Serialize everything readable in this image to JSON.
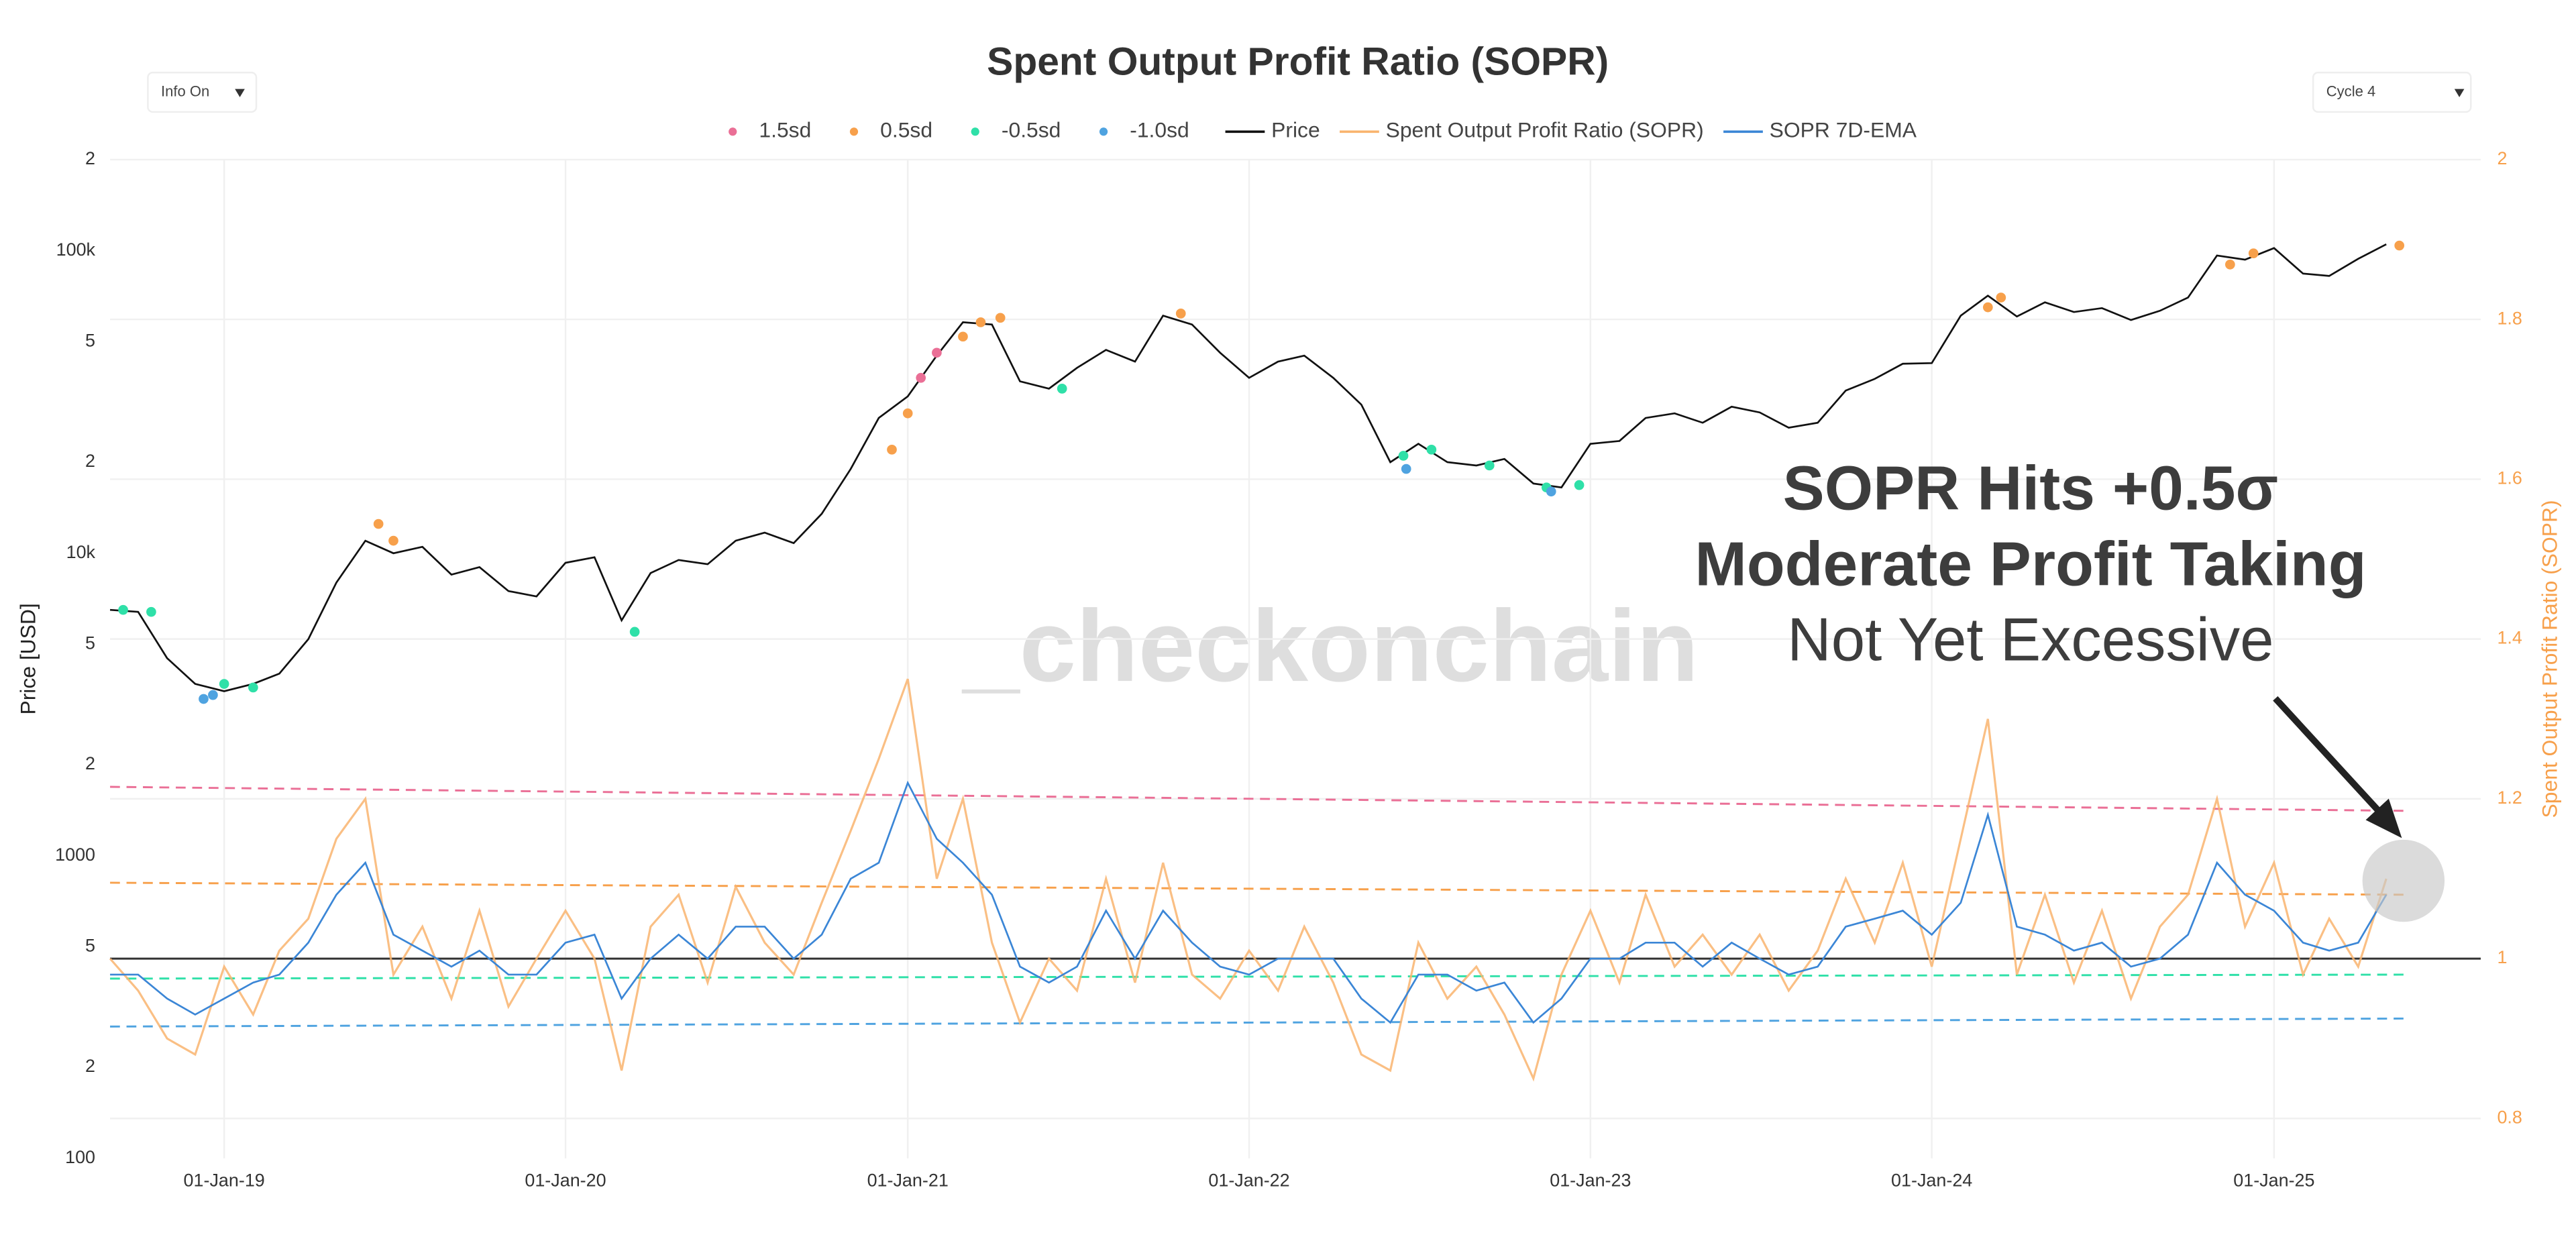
{
  "controls": [
    "Info On",
    "Cycle 4"
  ],
  "chart_data": {
    "type": "line",
    "title": "Spent Output Profit Ratio (SOPR)",
    "ylabel": "Price [USD]",
    "y2label": "Spent Output Profit Ratio (SOPR)",
    "watermark": "_checkonchain",
    "annotations": [
      "SOPR Hits +0.5σ",
      "Moderate Profit Taking",
      "Not Yet Excessive"
    ],
    "log_y": true,
    "grid": true,
    "xlim": [
      "2018-09-01",
      "2025-08-10"
    ],
    "xticks": [
      {
        "value": "2019-01-01",
        "label": "01-Jan-19"
      },
      {
        "value": "2020-01-01",
        "label": "01-Jan-20"
      },
      {
        "value": "2021-01-01",
        "label": "01-Jan-21"
      },
      {
        "value": "2022-01-01",
        "label": "01-Jan-22"
      },
      {
        "value": "2023-01-01",
        "label": "01-Jan-23"
      },
      {
        "value": "2024-01-01",
        "label": "01-Jan-24"
      },
      {
        "value": "2025-01-01",
        "label": "01-Jan-25"
      }
    ],
    "ylim": [
      100,
      200000
    ],
    "yticks": [
      100,
      {
        "value": 200,
        "label": "2"
      },
      {
        "value": 500,
        "label": "5"
      },
      1000,
      {
        "value": 2000,
        "label": "2"
      },
      {
        "value": 5000,
        "label": "5"
      },
      {
        "value": 10000,
        "label": "10k"
      },
      {
        "value": 20000,
        "label": "2"
      },
      {
        "value": 50000,
        "label": "5"
      },
      {
        "value": 100000,
        "label": "100k"
      },
      {
        "value": 200000,
        "label": "2"
      }
    ],
    "y2lim": [
      0.75,
      2.0
    ],
    "y2ticks": [
      0.8,
      1,
      1.2,
      1.4,
      1.6,
      1.8,
      2
    ],
    "hline": 1,
    "x": [
      "2018-09-01",
      "2018-10-01",
      "2018-11-01",
      "2018-12-01",
      "2019-01-01",
      "2019-02-01",
      "2019-03-01",
      "2019-04-01",
      "2019-05-01",
      "2019-06-01",
      "2019-07-01",
      "2019-08-01",
      "2019-09-01",
      "2019-10-01",
      "2019-11-01",
      "2019-12-01",
      "2020-01-01",
      "2020-02-01",
      "2020-03-01",
      "2020-04-01",
      "2020-05-01",
      "2020-06-01",
      "2020-07-01",
      "2020-08-01",
      "2020-09-01",
      "2020-10-01",
      "2020-11-01",
      "2020-12-01",
      "2021-01-01",
      "2021-02-01",
      "2021-03-01",
      "2021-04-01",
      "2021-05-01",
      "2021-06-01",
      "2021-07-01",
      "2021-08-01",
      "2021-09-01",
      "2021-10-01",
      "2021-11-01",
      "2021-12-01",
      "2022-01-01",
      "2022-02-01",
      "2022-03-01",
      "2022-04-01",
      "2022-05-01",
      "2022-06-01",
      "2022-07-01",
      "2022-08-01",
      "2022-09-01",
      "2022-10-01",
      "2022-11-01",
      "2022-12-01",
      "2023-01-01",
      "2023-02-01",
      "2023-03-01",
      "2023-04-01",
      "2023-05-01",
      "2023-06-01",
      "2023-07-01",
      "2023-08-01",
      "2023-09-01",
      "2023-10-01",
      "2023-11-01",
      "2023-12-01",
      "2024-01-01",
      "2024-02-01",
      "2024-03-01",
      "2024-04-01",
      "2024-05-01",
      "2024-06-01",
      "2024-07-01",
      "2024-08-01",
      "2024-09-01",
      "2024-10-01",
      "2024-11-01",
      "2024-12-01",
      "2025-01-01",
      "2025-02-01",
      "2025-03-01",
      "2025-04-01",
      "2025-05-01"
    ],
    "series": [
      {
        "name": "Spent Output Profit Ratio (SOPR)",
        "color": "#f9b46e",
        "axis": "y2",
        "values": [
          1.0,
          0.96,
          0.9,
          0.88,
          0.99,
          0.93,
          1.01,
          1.05,
          1.15,
          1.2,
          0.98,
          1.04,
          0.95,
          1.06,
          0.94,
          1.0,
          1.06,
          1.0,
          0.86,
          1.04,
          1.08,
          0.97,
          1.09,
          1.02,
          0.98,
          1.07,
          1.16,
          1.25,
          1.35,
          1.1,
          1.2,
          1.02,
          0.92,
          1.0,
          0.96,
          1.1,
          0.97,
          1.12,
          0.98,
          0.95,
          1.01,
          0.96,
          1.04,
          0.97,
          0.88,
          0.86,
          1.02,
          0.95,
          0.99,
          0.93,
          0.85,
          0.98,
          1.06,
          0.97,
          1.08,
          0.99,
          1.03,
          0.98,
          1.03,
          0.96,
          1.01,
          1.1,
          1.02,
          1.12,
          0.99,
          1.15,
          1.3,
          0.98,
          1.08,
          0.97,
          1.06,
          0.95,
          1.04,
          1.08,
          1.2,
          1.04,
          1.12,
          0.98,
          1.05,
          0.99,
          1.1
        ]
      },
      {
        "name": "SOPR 7D-EMA",
        "color": "#3b86d6",
        "axis": "y2",
        "values": [
          0.98,
          0.98,
          0.95,
          0.93,
          0.95,
          0.97,
          0.98,
          1.02,
          1.08,
          1.12,
          1.03,
          1.01,
          0.99,
          1.01,
          0.98,
          0.98,
          1.02,
          1.03,
          0.95,
          1.0,
          1.03,
          1.0,
          1.04,
          1.04,
          1.0,
          1.03,
          1.1,
          1.12,
          1.22,
          1.15,
          1.12,
          1.08,
          0.99,
          0.97,
          0.99,
          1.06,
          1.0,
          1.06,
          1.02,
          0.99,
          0.98,
          1.0,
          1.0,
          1.0,
          0.95,
          0.92,
          0.98,
          0.98,
          0.96,
          0.97,
          0.92,
          0.95,
          1.0,
          1.0,
          1.02,
          1.02,
          0.99,
          1.02,
          1.0,
          0.98,
          0.99,
          1.04,
          1.05,
          1.06,
          1.03,
          1.07,
          1.18,
          1.04,
          1.03,
          1.01,
          1.02,
          0.99,
          1.0,
          1.03,
          1.12,
          1.08,
          1.06,
          1.02,
          1.01,
          1.02,
          1.08
        ]
      },
      {
        "name": "Price",
        "color": "#111111",
        "axis": "y",
        "values": [
          6500,
          6400,
          4500,
          3700,
          3500,
          3700,
          4000,
          5200,
          8000,
          11000,
          10000,
          10500,
          8500,
          9000,
          7500,
          7200,
          9300,
          9700,
          6000,
          8600,
          9500,
          9200,
          11000,
          11700,
          10800,
          13500,
          19000,
          28000,
          33000,
          45000,
          58000,
          57000,
          37000,
          35000,
          41000,
          47000,
          43000,
          61000,
          57000,
          46000,
          38000,
          43000,
          45000,
          38000,
          31000,
          20000,
          23000,
          20000,
          19500,
          20500,
          17000,
          16500,
          23000,
          23500,
          28000,
          29000,
          27000,
          30500,
          29200,
          26000,
          27000,
          34500,
          37700,
          42300,
          42500,
          61000,
          71000,
          60600,
          67500,
          62700,
          64600,
          59000,
          63300,
          70000,
          96400,
          93400,
          102000,
          84000,
          82500,
          94000,
          105000
        ]
      }
    ],
    "band_x": [
      "2018-09-01",
      "2025-05-20"
    ],
    "bands": [
      {
        "name": "1.5sd",
        "color": "#ea6f96",
        "band": [
          1.215,
          1.185
        ],
        "x": [
          "2021-01-15",
          "2021-02-01"
        ],
        "values": [
          38000,
          46000
        ]
      },
      {
        "name": "0.5sd",
        "color": "#f7a04b",
        "band": [
          1.095,
          1.08
        ],
        "x": [
          "2019-06-15",
          "2019-07-01",
          "2020-12-15",
          "2021-01-01",
          "2021-03-01",
          "2021-03-20",
          "2021-04-10",
          "2021-10-20",
          "2024-03-01",
          "2024-03-15",
          "2024-11-15",
          "2024-12-10",
          "2025-05-15"
        ],
        "values": [
          12500,
          11000,
          22000,
          29000,
          52000,
          58000,
          60000,
          62000,
          65000,
          70000,
          90000,
          98000,
          104000
        ]
      },
      {
        "name": "-0.5sd",
        "color": "#2fe0a8",
        "band": [
          0.975,
          0.98
        ],
        "x": [
          "2018-09-15",
          "2018-10-15",
          "2019-01-01",
          "2019-02-01",
          "2020-03-15",
          "2021-06-15",
          "2022-06-15",
          "2022-07-15",
          "2022-09-15",
          "2022-11-15",
          "2022-12-20"
        ],
        "values": [
          6500,
          6400,
          3700,
          3600,
          5500,
          35000,
          21000,
          22000,
          19500,
          16500,
          16800
        ]
      },
      {
        "name": "-1.0sd",
        "color": "#4fa3e0",
        "band": [
          0.915,
          0.925
        ],
        "x": [
          "2018-12-10",
          "2018-12-20",
          "2022-06-18",
          "2022-11-20"
        ],
        "values": [
          3300,
          3400,
          19000,
          16000
        ]
      }
    ]
  }
}
